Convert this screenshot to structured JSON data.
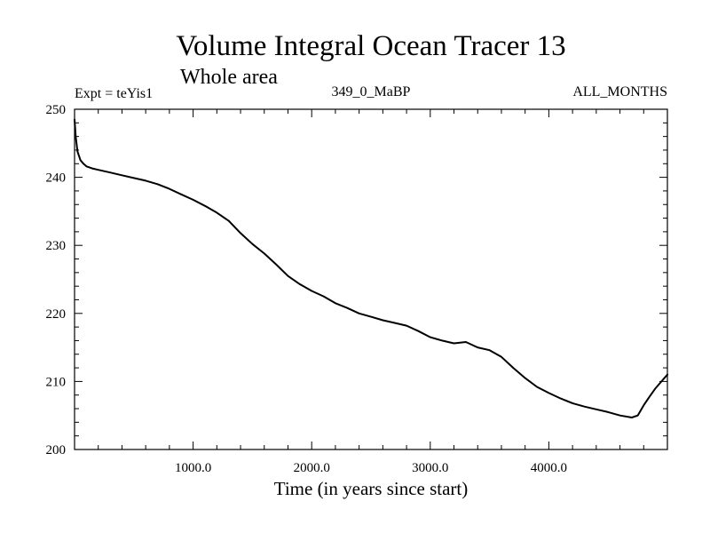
{
  "chart_data": {
    "type": "line",
    "title": "Volume Integral Ocean Tracer 13",
    "subtitle": "Whole area",
    "annotations": {
      "experiment": "Expt = teYis1",
      "period": "349_0_MaBP",
      "months": "ALL_MONTHS"
    },
    "xlabel": "Time (in years since start)",
    "ylabel": "",
    "xlim": [
      0,
      5000
    ],
    "ylim": [
      200,
      250
    ],
    "x_tick_labels": [
      "1000.0",
      "2000.0",
      "3000.0",
      "4000.0"
    ],
    "y_tick_labels": [
      "200",
      "210",
      "220",
      "230",
      "240",
      "250"
    ],
    "grid": false,
    "series": [
      {
        "name": "Volume Integral Ocean Tracer 13",
        "color": "#000000",
        "x": [
          0,
          10,
          25,
          50,
          75,
          100,
          150,
          200,
          300,
          400,
          500,
          600,
          700,
          800,
          900,
          1000,
          1100,
          1200,
          1300,
          1400,
          1500,
          1600,
          1700,
          1800,
          1900,
          2000,
          2100,
          2200,
          2300,
          2400,
          2500,
          2600,
          2700,
          2800,
          2900,
          3000,
          3100,
          3200,
          3300,
          3400,
          3500,
          3600,
          3700,
          3800,
          3900,
          4000,
          4100,
          4200,
          4300,
          4400,
          4500,
          4600,
          4700,
          4750,
          4800,
          4850,
          4900,
          4950,
          5000
        ],
        "values": [
          248.5,
          246.0,
          243.8,
          242.5,
          242.0,
          241.6,
          241.3,
          241.1,
          240.7,
          240.3,
          239.9,
          239.5,
          239.0,
          238.3,
          237.5,
          236.7,
          235.8,
          234.8,
          233.6,
          231.8,
          230.2,
          228.8,
          227.2,
          225.5,
          224.3,
          223.3,
          222.5,
          221.5,
          220.8,
          220.0,
          219.5,
          219.0,
          218.6,
          218.2,
          217.4,
          216.5,
          216.0,
          215.6,
          215.8,
          215.0,
          214.6,
          213.6,
          212.0,
          210.5,
          209.2,
          208.3,
          207.5,
          206.8,
          206.3,
          205.9,
          205.5,
          205.0,
          204.7,
          205.0,
          206.5,
          207.8,
          209.0,
          210.0,
          211.0
        ]
      }
    ]
  }
}
